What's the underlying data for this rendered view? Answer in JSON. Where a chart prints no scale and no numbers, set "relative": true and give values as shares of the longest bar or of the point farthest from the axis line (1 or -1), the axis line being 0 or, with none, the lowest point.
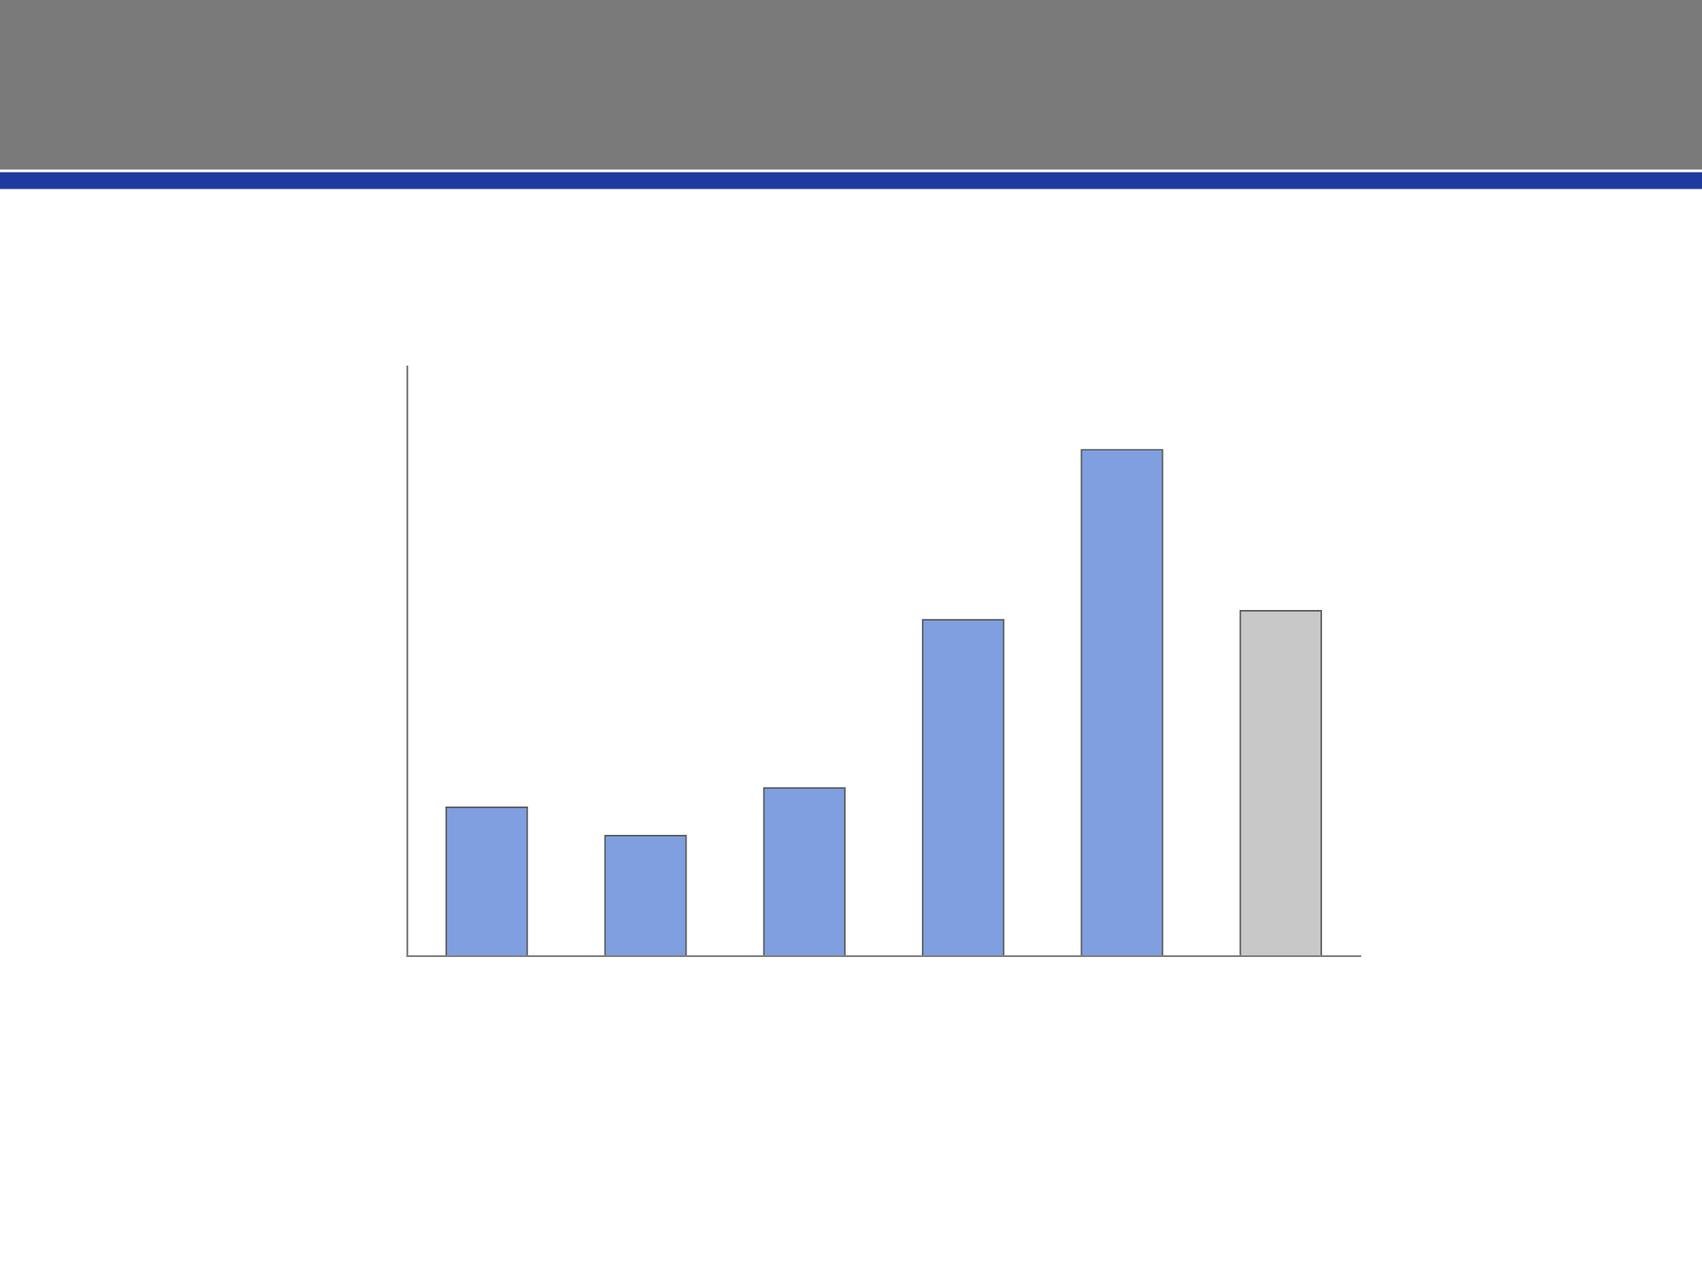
{
  "chart_data": {
    "type": "bar",
    "relative": true,
    "categories": [
      null,
      null,
      null,
      null,
      null,
      null
    ],
    "values": [
      0.294,
      0.238,
      0.332,
      0.664,
      1,
      0.682
    ],
    "colors": [
      "#7f9fe0",
      "#7f9fe0",
      "#7f9fe0",
      "#7f9fe0",
      "#7f9fe0",
      "#c8c8c8"
    ],
    "grid": false,
    "legend": false
  }
}
